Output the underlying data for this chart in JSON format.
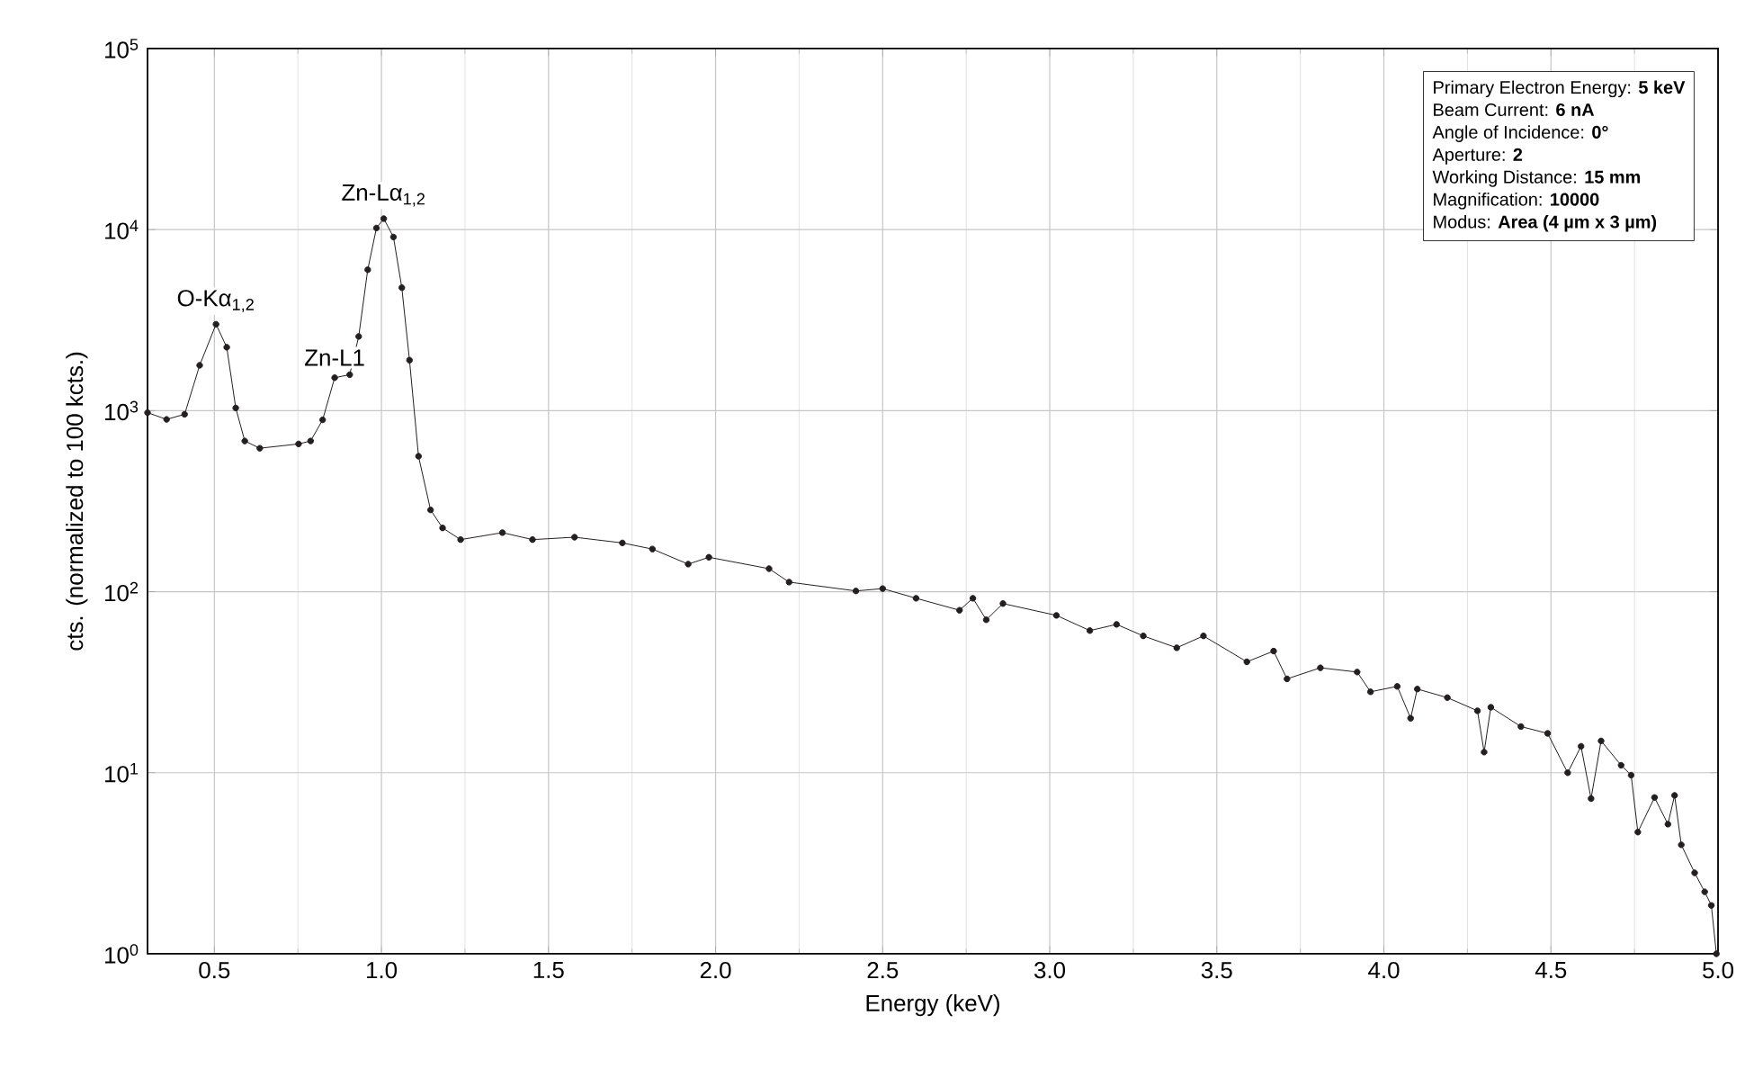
{
  "chart_data": {
    "type": "line",
    "xlabel": "Energy (keV)",
    "ylabel": "cts. (normalized to 100 kcts.)",
    "log": "y",
    "grid": true,
    "marker": "circle",
    "line_style": "solid",
    "xlim": [
      0.3,
      5.0
    ],
    "ylim": [
      1,
      100000
    ],
    "xticks": [
      {
        "value": 0.5,
        "label": "0.5"
      },
      {
        "value": 1.0,
        "label": "1.0"
      },
      {
        "value": 1.5,
        "label": "1.5"
      },
      {
        "value": 2.0,
        "label": "2.0"
      },
      {
        "value": 2.5,
        "label": "2.5"
      },
      {
        "value": 3.0,
        "label": "3.0"
      },
      {
        "value": 3.5,
        "label": "3.5"
      },
      {
        "value": 4.0,
        "label": "4.0"
      },
      {
        "value": 4.5,
        "label": "4.5"
      },
      {
        "value": 5.0,
        "label": "5.0"
      }
    ],
    "yticks": [
      {
        "value": 1,
        "label": "10$^{0}$"
      },
      {
        "value": 10,
        "label": "10$^{1}$"
      },
      {
        "value": 100,
        "label": "10$^{2}$"
      },
      {
        "value": 1000,
        "label": "10$^{3}$"
      },
      {
        "value": 10000,
        "label": "10$^{4}$"
      },
      {
        "value": 100000,
        "label": "10$^{5}$"
      }
    ],
    "series": [
      {
        "color": "#231f20",
        "x": [
          0.3,
          0.357,
          0.411,
          0.456,
          0.505,
          0.537,
          0.564,
          0.591,
          0.636,
          0.752,
          0.788,
          0.824,
          0.86,
          0.905,
          0.932,
          0.959,
          0.985,
          1.007,
          1.036,
          1.061,
          1.084,
          1.111,
          1.147,
          1.183,
          1.237,
          1.362,
          1.452,
          1.578,
          1.721,
          1.811,
          1.918,
          1.98,
          2.16,
          2.22,
          2.42,
          2.5,
          2.6,
          2.73,
          2.77,
          2.81,
          2.86,
          3.02,
          3.12,
          3.2,
          3.28,
          3.38,
          3.46,
          3.59,
          3.67,
          3.71,
          3.81,
          3.92,
          3.96,
          4.04,
          4.08,
          4.1,
          4.19,
          4.28,
          4.3,
          4.32,
          4.41,
          4.49,
          4.55,
          4.59,
          4.62,
          4.65,
          4.71,
          4.74,
          4.76,
          4.81,
          4.85,
          4.87,
          4.89,
          4.93,
          4.96,
          4.98,
          4.995
        ],
        "values": [
          975,
          895,
          955,
          1780,
          3000,
          2240,
          1035,
          680,
          620,
          655,
          680,
          890,
          1520,
          1580,
          2570,
          6000,
          10200,
          11500,
          9100,
          4780,
          1900,
          560,
          283,
          225,
          194,
          212,
          194,
          200,
          186,
          172,
          142,
          155,
          134,
          113,
          101,
          104,
          92,
          79,
          92,
          70,
          86,
          74,
          61,
          66,
          57,
          49,
          57,
          41,
          47,
          33,
          38,
          36,
          28,
          30,
          20,
          29,
          26,
          22,
          13,
          23,
          18,
          16.5,
          10,
          14,
          7.2,
          15,
          11,
          9.7,
          4.7,
          7.3,
          5.2,
          7.5,
          4.0,
          2.8,
          2.2,
          1.85,
          1.0
        ]
      }
    ],
    "annotations": [
      {
        "text": "O-Kα$_{1,2}$",
        "x": 0.505,
        "y": 3000
      },
      {
        "text": "Zn-L1",
        "x": 0.86,
        "y": 1520
      },
      {
        "text": "Zn-Lα$_{1,2}$",
        "x": 1.007,
        "y": 11500
      },
      "Primary Electron Energy: **5 keV**",
      "Beam Current: **6 nA**",
      "Angle of Incidence: **0°**",
      "Aperture: **2**",
      "Working Distance: **15 mm**",
      "Magnification: **10000**",
      "Modus: **Area (4 µm x 3 µm)**"
    ]
  }
}
